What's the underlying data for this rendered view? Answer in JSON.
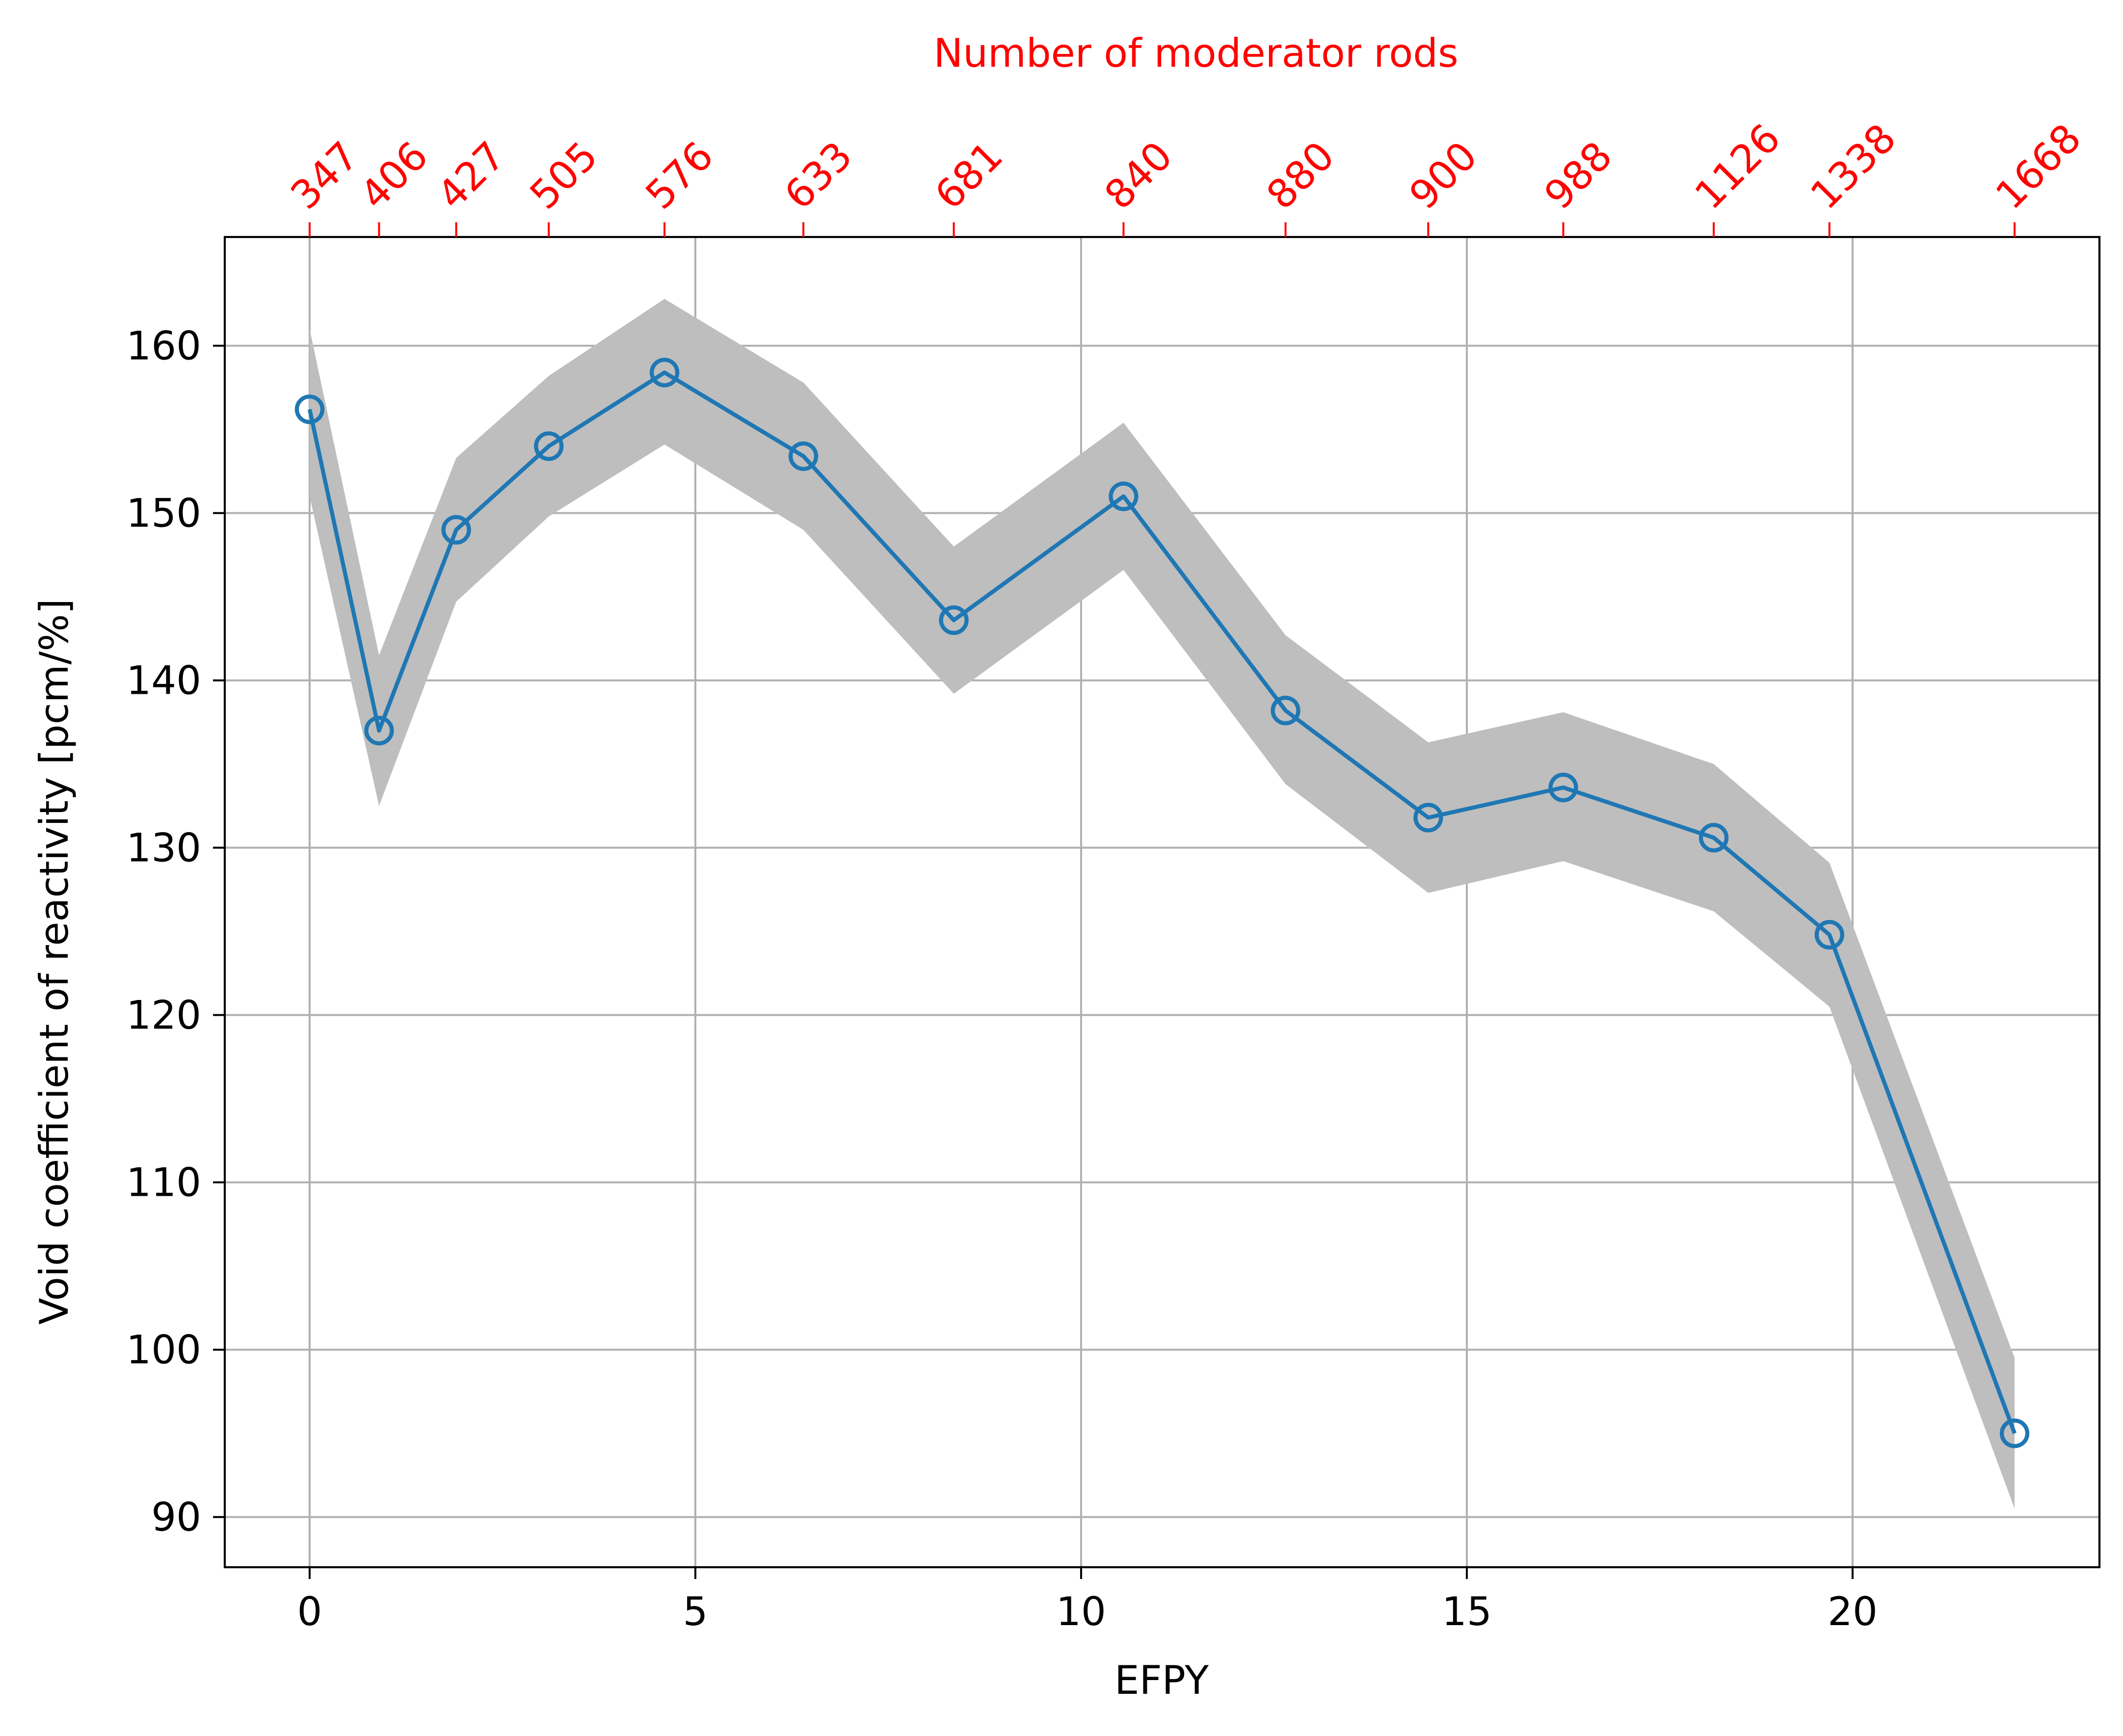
{
  "chart_data": {
    "type": "line",
    "title": "",
    "xlabel": "EFPY",
    "ylabel": "Void coefficient of reactivity [pcm/%]",
    "top_axis_label": "Number of moderator rods",
    "xlim": [
      -1.1,
      23.2
    ],
    "ylim": [
      87,
      166.5
    ],
    "xticks": [
      0,
      5,
      10,
      15,
      20
    ],
    "yticks": [
      90,
      100,
      110,
      120,
      130,
      140,
      150,
      160
    ],
    "grid": true,
    "colors": {
      "line": "#1f77b4",
      "band": "#bebebe",
      "top_axis": "#ff0000",
      "grid": "#b0b0b0"
    },
    "series": [
      {
        "x": [
          0,
          0.9,
          1.9,
          3.1,
          4.6,
          6.4,
          8.35,
          10.55,
          12.65,
          14.5,
          16.25,
          18.2,
          19.7,
          22.1
        ],
        "values": [
          156.2,
          137.0,
          149.0,
          154.0,
          158.4,
          153.4,
          143.6,
          151.0,
          138.2,
          131.8,
          133.6,
          130.6,
          124.8,
          95.0
        ],
        "lower": [
          151.0,
          132.5,
          144.7,
          149.8,
          154.1,
          149.0,
          139.2,
          146.6,
          133.8,
          127.3,
          129.2,
          126.2,
          120.5,
          90.5
        ],
        "upper": [
          161.0,
          141.5,
          153.3,
          158.2,
          162.8,
          157.8,
          148.0,
          155.4,
          142.7,
          136.3,
          138.1,
          135.0,
          129.1,
          99.5
        ]
      }
    ],
    "top_axis_ticks": [
      "347",
      "406",
      "427",
      "505",
      "576",
      "633",
      "681",
      "840",
      "880",
      "900",
      "988",
      "1126",
      "1338",
      "1668"
    ]
  }
}
